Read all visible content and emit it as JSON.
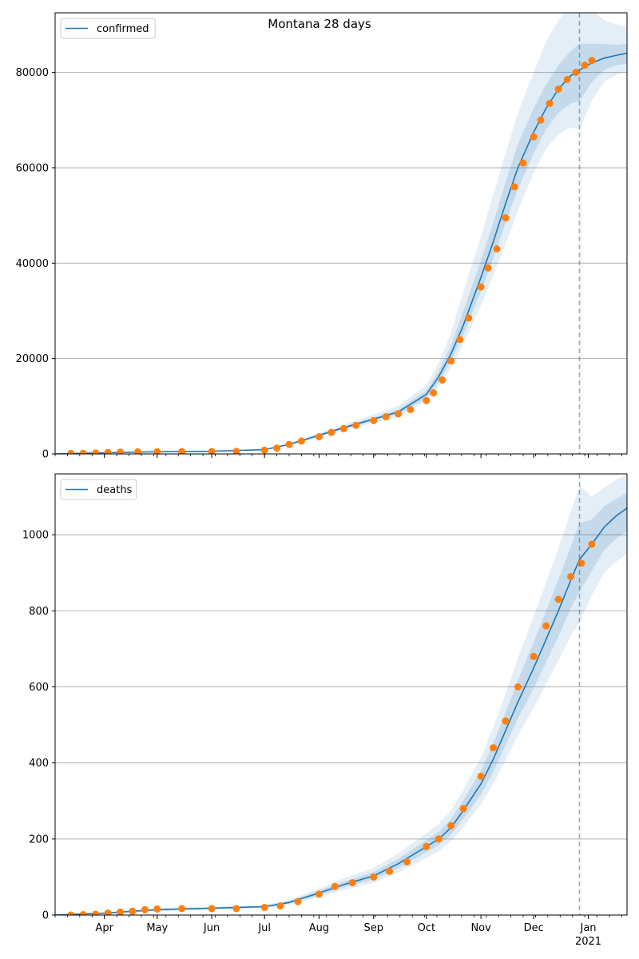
{
  "figure": {
    "title": "Montana 28 days"
  },
  "colors": {
    "fit_line": "#1f77b4",
    "band": "#1f77b4",
    "observed": "#ff7f0e",
    "grid": "#b0b0b0",
    "vline": "#1f77b4"
  },
  "chart_data": [
    {
      "type": "line",
      "legend": [
        "confirmed"
      ],
      "legend_placement": "top-left",
      "grid": "y",
      "x_axis": {
        "range": [
          "2020-03-04",
          "2021-01-23"
        ],
        "tick_labels": [
          "Apr",
          "May",
          "Jun",
          "Jul",
          "Aug",
          "Sep",
          "Oct",
          "Nov",
          "Dec",
          "Jan"
        ],
        "tick_dates": [
          "2020-04-01",
          "2020-05-01",
          "2020-06-01",
          "2020-07-01",
          "2020-08-01",
          "2020-09-01",
          "2020-10-01",
          "2020-11-01",
          "2020-12-01",
          "2021-01-01"
        ],
        "year_label": "2021"
      },
      "ylim": [
        0,
        92500
      ],
      "y_ticks": [
        0,
        20000,
        40000,
        60000,
        80000
      ],
      "forecast_start": "2020-12-27",
      "fit": {
        "x": [
          "2020-03-04",
          "2020-04-01",
          "2020-05-01",
          "2020-06-01",
          "2020-07-01",
          "2020-07-15",
          "2020-08-01",
          "2020-08-15",
          "2020-09-01",
          "2020-09-15",
          "2020-10-01",
          "2020-10-08",
          "2020-10-15",
          "2020-10-22",
          "2020-11-01",
          "2020-11-08",
          "2020-11-15",
          "2020-11-22",
          "2020-12-01",
          "2020-12-08",
          "2020-12-15",
          "2020-12-22",
          "2020-12-27",
          "2021-01-03",
          "2021-01-10",
          "2021-01-17",
          "2021-01-23"
        ],
        "y": [
          0,
          250,
          450,
          550,
          900,
          2000,
          3900,
          5500,
          7300,
          8800,
          12500,
          16200,
          21000,
          27000,
          37000,
          44500,
          52500,
          60000,
          67500,
          72500,
          76500,
          79300,
          80500,
          82000,
          83000,
          83600,
          84000
        ],
        "bands": [
          {
            "lower": [
              0,
              200,
              400,
              500,
              800,
              1800,
              3500,
              5000,
              6500,
              7800,
              11000,
              14000,
              18000,
              23000,
              31000,
              37500,
              44000,
              51000,
              59000,
              64000,
              67000,
              68500,
              68000,
              74000,
              78000,
              79500,
              80200
            ],
            "upper": [
              0,
              300,
              500,
              600,
              1000,
              2300,
              4400,
              6200,
              8300,
              10000,
              14500,
              19000,
              25500,
              34000,
              45500,
              54500,
              63000,
              71500,
              80000,
              86500,
              91000,
              94000,
              96000,
              93000,
              91000,
              90000,
              89500
            ]
          },
          {
            "lower": [
              0,
              220,
              420,
              520,
              850,
              1900,
              3700,
              5200,
              6900,
              8300,
              11700,
              15000,
              19500,
              25000,
              34000,
              41000,
              48500,
              55500,
              63000,
              68000,
              71500,
              73500,
              74000,
              78000,
              80500,
              81500,
              81800
            ],
            "upper": [
              0,
              280,
              480,
              580,
              950,
              2150,
              4100,
              5800,
              7700,
              9300,
              13300,
              17400,
              22800,
              30000,
              40500,
              48500,
              57000,
              65000,
              72500,
              77500,
              81500,
              84500,
              86000,
              86000,
              86000,
              85800,
              86000
            ]
          }
        ]
      },
      "observed": {
        "x": [
          "2020-03-13",
          "2020-03-20",
          "2020-03-27",
          "2020-04-03",
          "2020-04-10",
          "2020-04-20",
          "2020-05-01",
          "2020-05-15",
          "2020-06-01",
          "2020-06-15",
          "2020-07-01",
          "2020-07-08",
          "2020-07-15",
          "2020-07-22",
          "2020-08-01",
          "2020-08-08",
          "2020-08-15",
          "2020-08-22",
          "2020-09-01",
          "2020-09-08",
          "2020-09-15",
          "2020-09-22",
          "2020-10-01",
          "2020-10-05",
          "2020-10-10",
          "2020-10-15",
          "2020-10-20",
          "2020-10-25",
          "2020-11-01",
          "2020-11-05",
          "2020-11-10",
          "2020-11-15",
          "2020-11-20",
          "2020-11-25",
          "2020-12-01",
          "2020-12-05",
          "2020-12-10",
          "2020-12-15",
          "2020-12-20",
          "2020-12-25",
          "2020-12-30",
          "2021-01-03"
        ],
        "y": [
          100,
          130,
          200,
          300,
          380,
          430,
          450,
          470,
          500,
          520,
          800,
          1200,
          2000,
          2700,
          3600,
          4500,
          5300,
          6000,
          7000,
          7800,
          8400,
          9300,
          11200,
          12800,
          15500,
          19500,
          24000,
          28500,
          35000,
          39000,
          43000,
          49500,
          56000,
          61000,
          66500,
          70000,
          73500,
          76500,
          78500,
          80000,
          81500,
          82500
        ]
      }
    },
    {
      "type": "line",
      "legend": [
        "deaths"
      ],
      "legend_placement": "top-left",
      "grid": "y",
      "x_axis": {
        "range": [
          "2020-03-04",
          "2021-01-23"
        ],
        "tick_labels": [
          "Apr",
          "May",
          "Jun",
          "Jul",
          "Aug",
          "Sep",
          "Oct",
          "Nov",
          "Dec",
          "Jan"
        ],
        "tick_dates": [
          "2020-04-01",
          "2020-05-01",
          "2020-06-01",
          "2020-07-01",
          "2020-08-01",
          "2020-09-01",
          "2020-10-01",
          "2020-11-01",
          "2020-12-01",
          "2021-01-01"
        ],
        "year_label": "2021"
      },
      "ylim": [
        0,
        1160
      ],
      "y_ticks": [
        0,
        200,
        400,
        600,
        800,
        1000
      ],
      "forecast_start": "2020-12-27",
      "fit": {
        "x": [
          "2020-03-04",
          "2020-04-01",
          "2020-05-01",
          "2020-06-01",
          "2020-07-01",
          "2020-07-15",
          "2020-08-01",
          "2020-08-15",
          "2020-09-01",
          "2020-09-15",
          "2020-10-01",
          "2020-10-08",
          "2020-10-15",
          "2020-10-22",
          "2020-11-01",
          "2020-11-08",
          "2020-11-15",
          "2020-11-22",
          "2020-12-01",
          "2020-12-08",
          "2020-12-15",
          "2020-12-22",
          "2020-12-27",
          "2021-01-03",
          "2021-01-10",
          "2021-01-17",
          "2021-01-23"
        ],
        "y": [
          0,
          5,
          14,
          18,
          22,
          33,
          58,
          80,
          103,
          135,
          180,
          200,
          230,
          275,
          345,
          410,
          485,
          560,
          650,
          725,
          800,
          880,
          935,
          975,
          1020,
          1050,
          1070
        ],
        "bands": [
          {
            "lower": [
              0,
              3,
              10,
              14,
              18,
              27,
              47,
              66,
              85,
              112,
              150,
              168,
              193,
              232,
              290,
              345,
              408,
              472,
              545,
              608,
              670,
              735,
              770,
              840,
              900,
              930,
              950
            ],
            "upper": [
              0,
              7,
              18,
              22,
              27,
              40,
              70,
              96,
              124,
              162,
              215,
              240,
              275,
              330,
              415,
              494,
              583,
              675,
              785,
              875,
              965,
              1060,
              1130,
              1100,
              1125,
              1145,
              1160
            ]
          },
          {
            "lower": [
              0,
              4,
              12,
              16,
              20,
              30,
              52,
              73,
              94,
              123,
              165,
              184,
              211,
              253,
              317,
              377,
              447,
              516,
              597,
              665,
              733,
              806,
              850,
              905,
              960,
              990,
              1010
            ],
            "upper": [
              0,
              6,
              16,
              20,
              24,
              37,
              64,
              88,
              113,
              148,
              197,
              219,
              252,
              302,
              380,
              452,
              533,
              617,
              718,
              800,
              882,
              968,
              1030,
              1040,
              1075,
              1095,
              1110
            ]
          }
        ]
      },
      "observed": {
        "x": [
          "2020-03-13",
          "2020-03-20",
          "2020-03-27",
          "2020-04-03",
          "2020-04-10",
          "2020-04-17",
          "2020-04-24",
          "2020-05-01",
          "2020-05-15",
          "2020-06-01",
          "2020-06-15",
          "2020-07-01",
          "2020-07-10",
          "2020-07-20",
          "2020-08-01",
          "2020-08-10",
          "2020-08-20",
          "2020-09-01",
          "2020-09-10",
          "2020-09-20",
          "2020-10-01",
          "2020-10-08",
          "2020-10-15",
          "2020-10-22",
          "2020-11-01",
          "2020-11-08",
          "2020-11-15",
          "2020-11-22",
          "2020-12-01",
          "2020-12-08",
          "2020-12-15",
          "2020-12-22",
          "2020-12-28",
          "2021-01-03"
        ],
        "y": [
          0,
          1,
          2,
          5,
          8,
          10,
          14,
          16,
          17,
          17,
          17,
          20,
          24,
          35,
          55,
          75,
          85,
          100,
          115,
          140,
          180,
          200,
          235,
          280,
          365,
          440,
          510,
          600,
          680,
          760,
          830,
          890,
          925,
          975
        ]
      }
    }
  ]
}
